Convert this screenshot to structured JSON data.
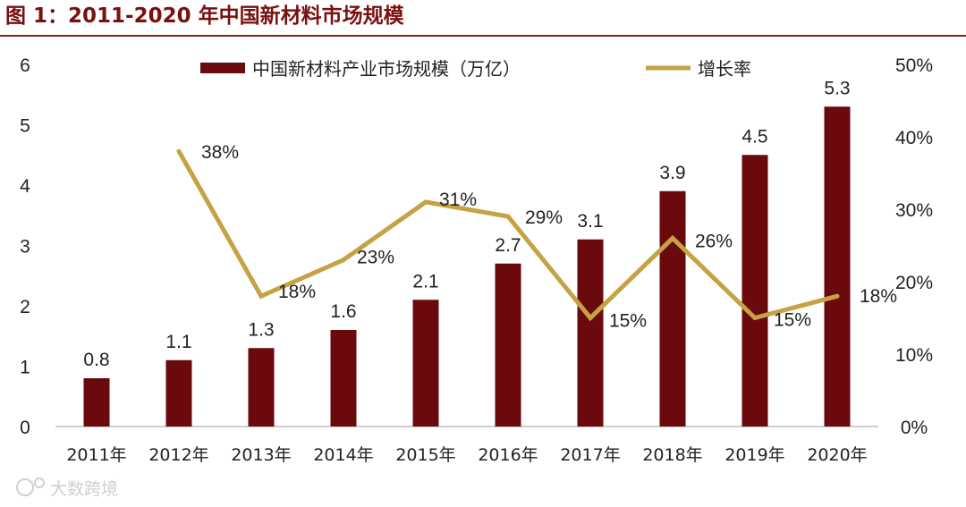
{
  "figure": {
    "title": "图 1：2011-2020 年中国新材料市场规模"
  },
  "watermark": {
    "text": "大数跨境"
  },
  "colors": {
    "bar": "#6b0a0c",
    "line": "#c5a244",
    "title": "#7a1010",
    "rule": "#8b1a1a",
    "axis": "#bfbfbf",
    "text": "#222222"
  },
  "chart_data": {
    "type": "bar+line",
    "categories": [
      "2011年",
      "2012年",
      "2013年",
      "2014年",
      "2015年",
      "2016年",
      "2017年",
      "2018年",
      "2019年",
      "2020年"
    ],
    "series": [
      {
        "name": "中国新材料产业市场规模（万亿）",
        "type": "bar",
        "axis": "left",
        "values": [
          0.8,
          1.1,
          1.3,
          1.6,
          2.1,
          2.7,
          3.1,
          3.9,
          4.5,
          5.3
        ],
        "labels": [
          "0.8",
          "1.1",
          "1.3",
          "1.6",
          "2.1",
          "2.7",
          "3.1",
          "3.9",
          "4.5",
          "5.3"
        ]
      },
      {
        "name": "增长率",
        "type": "line",
        "axis": "right",
        "values": [
          null,
          38,
          18,
          23,
          31,
          29,
          15,
          26,
          15,
          18
        ],
        "labels": [
          null,
          "38%",
          "18%",
          "23%",
          "31%",
          "29%",
          "15%",
          "26%",
          "15%",
          "18%"
        ]
      }
    ],
    "y_left": {
      "min": 0,
      "max": 6,
      "ticks": [
        "0",
        "1",
        "2",
        "3",
        "4",
        "5",
        "6"
      ]
    },
    "y_right": {
      "min": 0,
      "max": 50,
      "ticks": [
        "0%",
        "10%",
        "20%",
        "30%",
        "40%",
        "50%"
      ]
    },
    "grid": false,
    "legend": "top-center"
  }
}
